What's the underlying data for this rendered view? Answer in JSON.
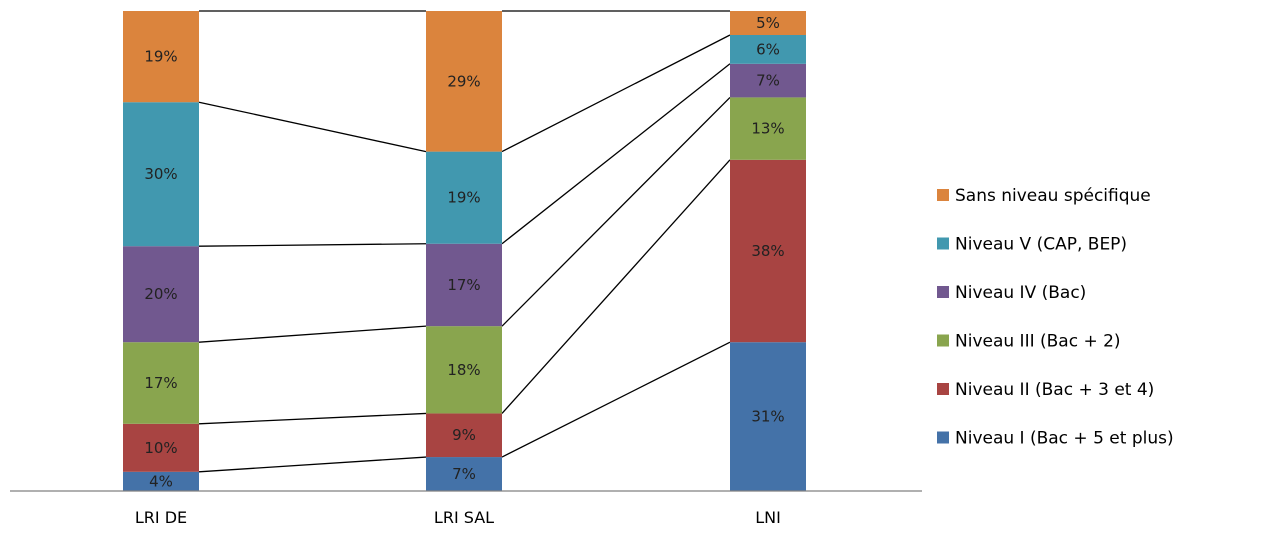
{
  "chart_data": {
    "type": "bar",
    "stacked": true,
    "normalized": true,
    "categories": [
      "LRI DE",
      "LRI SAL",
      "LNI"
    ],
    "series": [
      {
        "name": "Niveau I (Bac + 5 et plus)",
        "values": [
          4,
          7,
          31
        ],
        "labels": [
          "4%",
          "7%",
          "31%"
        ],
        "color": "#4472A8"
      },
      {
        "name": "Niveau II (Bac + 3 et 4)",
        "values": [
          10,
          9,
          38
        ],
        "labels": [
          "10%",
          "9%",
          "38%"
        ],
        "color": "#A84442"
      },
      {
        "name": "Niveau III (Bac + 2)",
        "values": [
          17,
          18,
          13
        ],
        "labels": [
          "17%",
          "18%",
          "13%"
        ],
        "color": "#89A54E"
      },
      {
        "name": "Niveau IV (Bac)",
        "values": [
          20,
          17,
          7
        ],
        "labels": [
          "20%",
          "17%",
          "7%"
        ],
        "color": "#71588F"
      },
      {
        "name": "Niveau V (CAP, BEP)",
        "values": [
          30,
          19,
          6
        ],
        "labels": [
          "30%",
          "19%",
          "6%"
        ],
        "color": "#4198AF"
      },
      {
        "name": "Sans niveau spécifique",
        "values": [
          19,
          29,
          5
        ],
        "labels": [
          "19%",
          "29%",
          "5%"
        ],
        "color": "#DB843D"
      }
    ],
    "legend_order": [
      5,
      4,
      3,
      2,
      1,
      0
    ],
    "legend_position": "right",
    "series_lines": true,
    "ylim": [
      0,
      100
    ],
    "xlabel": "",
    "ylabel": "",
    "title": "",
    "grid": false
  }
}
